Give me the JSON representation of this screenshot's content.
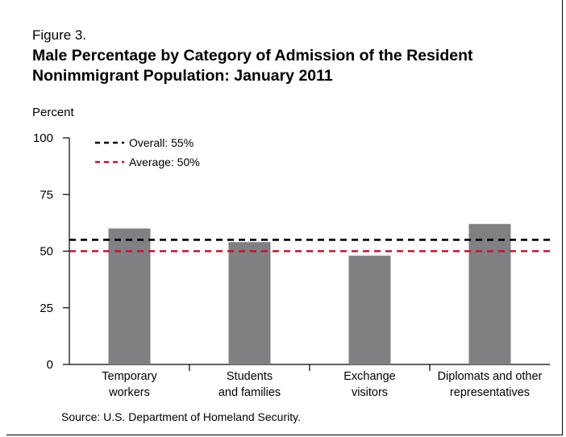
{
  "figure_label": "Figure 3.",
  "chart_data": {
    "type": "bar",
    "title": "Male Percentage by Category of Admission of the Resident Nonimmigrant Population: January 2011",
    "ylabel": "Percent",
    "xlabel": "",
    "ylim": [
      0,
      100
    ],
    "yticks": [
      "0",
      "25",
      "50",
      "75",
      "100"
    ],
    "categories": [
      [
        "Temporary",
        "workers"
      ],
      [
        "Students",
        "and families"
      ],
      [
        "Exchange",
        "visitors"
      ],
      [
        "Diplomats and other",
        "representatives"
      ]
    ],
    "values": [
      60,
      54,
      48,
      62
    ],
    "bar_color": "#808083",
    "reference_lines": [
      {
        "label": "Overall: 55%",
        "value": 55,
        "color": "#000000",
        "style": "dashed"
      },
      {
        "label": "Average: 50%",
        "value": 50,
        "color": "#c8102e",
        "style": "dashed"
      }
    ],
    "legend_position": "top-left",
    "grid": false
  },
  "source": "Source: U.S. Department of Homeland Security."
}
